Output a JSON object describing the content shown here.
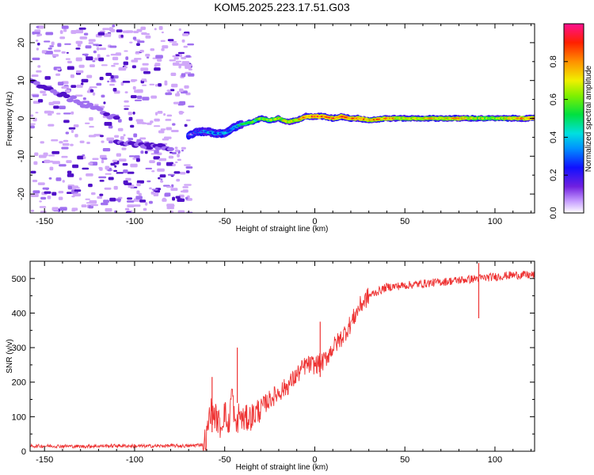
{
  "figure_title": "KOM5.2025.223.17.51.G03",
  "colors": {
    "snr_line": "#ee3333",
    "axis": "#000000",
    "noise_light": "#d0a8f8",
    "noise_mid": "#a070f0",
    "noise_dark": "#5010c8"
  },
  "chart_data": [
    {
      "type": "heatmap",
      "title": "KOM5.2025.223.17.51.G03",
      "xlabel": "Height of straight line (km)",
      "ylabel": "Frequency (Hz)",
      "xlim": [
        -158,
        122
      ],
      "ylim": [
        -25,
        25
      ],
      "x_ticks": [
        -150,
        -100,
        -50,
        0,
        50,
        100
      ],
      "x_tick_labels": [
        "-150",
        "-100",
        "-50",
        "0",
        "50",
        "100"
      ],
      "y_ticks": [
        -20,
        -10,
        0,
        10,
        20
      ],
      "y_tick_labels": [
        "-20",
        "-10",
        "0",
        "10",
        "20"
      ],
      "colorbar": {
        "label": "Normalized spectral amplitude",
        "range": [
          0,
          1
        ],
        "ticks": [
          0.0,
          0.2,
          0.4,
          0.6,
          0.8
        ],
        "tick_labels": [
          "0.0",
          "0.2",
          "0.4",
          "0.6",
          "0.8"
        ],
        "colormap": "rainbow (white - violet - blue - cyan - green - yellow - orange - red - pink)"
      },
      "ridge": {
        "description": "dominant Doppler frequency track",
        "x": [
          -70,
          -65,
          -60,
          -55,
          -50,
          -45,
          -40,
          -35,
          -30,
          -25,
          -20,
          -15,
          -10,
          -5,
          0,
          5,
          10,
          15,
          20,
          25,
          30,
          40,
          50,
          60,
          70,
          80,
          90,
          100,
          110,
          122
        ],
        "freq_hz": [
          -4.5,
          -3.5,
          -3.5,
          -4,
          -4,
          -2.5,
          -1.5,
          -1,
          0,
          -0.5,
          0,
          -1,
          -0.5,
          0.5,
          0.5,
          0.5,
          0,
          0.5,
          0,
          0,
          -0.5,
          0,
          0,
          0,
          0,
          0,
          0,
          0,
          0,
          0
        ],
        "amplitude": [
          0.1,
          0.2,
          0.25,
          0.3,
          0.25,
          0.3,
          0.4,
          0.45,
          0.55,
          0.5,
          0.6,
          0.6,
          0.65,
          0.75,
          0.8,
          0.8,
          0.75,
          0.85,
          0.75,
          0.8,
          0.7,
          0.75,
          0.6,
          0.65,
          0.65,
          0.7,
          0.6,
          0.55,
          0.7,
          0.75
        ]
      },
      "noise_region": {
        "x_range": [
          -158,
          -70
        ],
        "freq_range": [
          -25,
          25
        ],
        "amplitude_range": [
          0.0,
          0.15
        ]
      },
      "diagonal_streaks": [
        {
          "x": [
            -158,
            -110
          ],
          "freq_hz": [
            10,
            0
          ],
          "amplitude": 0.12
        },
        {
          "x": [
            -110,
            -80
          ],
          "freq_hz": [
            -6,
            -8
          ],
          "amplitude": 0.1
        }
      ]
    },
    {
      "type": "line",
      "xlabel": "Height of straight line (km)",
      "ylabel": "SNR (v/v)",
      "xlim": [
        -158,
        122
      ],
      "ylim": [
        0,
        550
      ],
      "x_ticks": [
        -150,
        -100,
        -50,
        0,
        50,
        100
      ],
      "x_tick_labels": [
        "-150",
        "-100",
        "-50",
        "0",
        "50",
        "100"
      ],
      "y_ticks": [
        0,
        100,
        200,
        300,
        400,
        500
      ],
      "y_tick_labels": [
        "0",
        "100",
        "200",
        "300",
        "400",
        "500"
      ],
      "series": [
        {
          "name": "SNR",
          "x": [
            -158,
            -150,
            -140,
            -130,
            -120,
            -110,
            -100,
            -90,
            -80,
            -70,
            -62,
            -60,
            -58,
            -55,
            -52,
            -50,
            -48,
            -46,
            -44,
            -42,
            -40,
            -35,
            -30,
            -25,
            -20,
            -15,
            -10,
            -5,
            0,
            5,
            10,
            15,
            20,
            25,
            30,
            40,
            50,
            60,
            70,
            80,
            90,
            100,
            110,
            122
          ],
          "y": [
            15,
            15,
            15,
            14,
            15,
            16,
            15,
            15,
            16,
            15,
            20,
            40,
            120,
            100,
            70,
            120,
            60,
            180,
            60,
            110,
            90,
            100,
            125,
            150,
            170,
            190,
            220,
            250,
            250,
            260,
            300,
            330,
            370,
            420,
            450,
            475,
            480,
            485,
            490,
            495,
            500,
            505,
            510,
            510
          ]
        }
      ],
      "annotations": [
        {
          "x": -57,
          "y": 215,
          "label": "spike"
        },
        {
          "x": -43,
          "y": 300,
          "label": "spike"
        },
        {
          "x": 3,
          "y": 375,
          "label": "spike"
        },
        {
          "x": 91,
          "y": 545,
          "label": "spike"
        }
      ]
    }
  ]
}
